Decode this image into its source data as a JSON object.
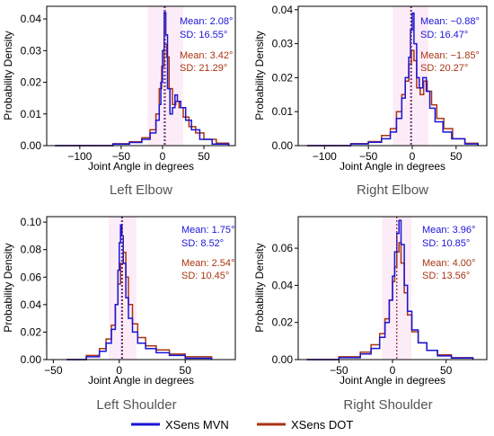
{
  "colors": {
    "mvn": "#1a14d6",
    "dot": "#a83412",
    "shade": "#f6c8e8"
  },
  "legend": [
    {
      "name": "XSens MVN",
      "color": "#1a14d6"
    },
    {
      "name": "XSens DOT",
      "color": "#a83412"
    }
  ],
  "chart_data": [
    {
      "type": "histogram-step",
      "caption": "Left Elbow",
      "xlabel": "Joint Angle in degrees",
      "ylabel": "Probability Density",
      "xlim": [
        -140,
        88
      ],
      "ylim": [
        0,
        0.044
      ],
      "xticks": [
        -100,
        -50,
        0,
        50
      ],
      "xtick_labels": [
        "−100",
        "−50",
        "0",
        "50"
      ],
      "yticks": [
        0.0,
        0.01,
        0.02,
        0.03,
        0.04
      ],
      "ytick_labels": [
        "0.00",
        "0.01",
        "0.02",
        "0.03",
        "0.04"
      ],
      "series": [
        {
          "name": "XSens MVN",
          "mean": 2.08,
          "sd": 16.55,
          "mean_label": "Mean: 2.08°",
          "sd_label": "SD: 16.55°",
          "points": [
            [
              -130,
              0
            ],
            [
              -60,
              0.0005
            ],
            [
              -40,
              0.001
            ],
            [
              -25,
              0.002
            ],
            [
              -15,
              0.004
            ],
            [
              -8,
              0.008
            ],
            [
              -4,
              0.013
            ],
            [
              -2,
              0.02
            ],
            [
              0,
              0.03
            ],
            [
              2,
              0.042
            ],
            [
              4,
              0.035
            ],
            [
              6,
              0.018
            ],
            [
              9,
              0.01
            ],
            [
              12,
              0.012
            ],
            [
              15,
              0.016
            ],
            [
              18,
              0.014
            ],
            [
              22,
              0.012
            ],
            [
              28,
              0.008
            ],
            [
              35,
              0.005
            ],
            [
              45,
              0.002
            ],
            [
              60,
              0.0005
            ],
            [
              80,
              0
            ]
          ]
        },
        {
          "name": "XSens DOT",
          "mean": 3.42,
          "sd": 21.29,
          "mean_label": "Mean: 3.42°",
          "sd_label": "SD: 21.29°",
          "points": [
            [
              -130,
              0
            ],
            [
              -60,
              0.0006
            ],
            [
              -40,
              0.0012
            ],
            [
              -25,
              0.0025
            ],
            [
              -15,
              0.005
            ],
            [
              -8,
              0.01
            ],
            [
              -4,
              0.018
            ],
            [
              -1,
              0.025
            ],
            [
              2,
              0.032
            ],
            [
              5,
              0.028
            ],
            [
              8,
              0.018
            ],
            [
              12,
              0.013
            ],
            [
              16,
              0.014
            ],
            [
              20,
              0.012
            ],
            [
              25,
              0.009
            ],
            [
              32,
              0.006
            ],
            [
              40,
              0.004
            ],
            [
              50,
              0.002
            ],
            [
              65,
              0.0008
            ],
            [
              80,
              0
            ]
          ]
        }
      ]
    },
    {
      "type": "histogram-step",
      "caption": "Right Elbow",
      "xlabel": "Joint Angle in degrees",
      "ylabel": "Probability Density",
      "xlim": [
        -130,
        85
      ],
      "ylim": [
        0,
        0.041
      ],
      "xticks": [
        -100,
        -50,
        0,
        50
      ],
      "xtick_labels": [
        "−100",
        "−50",
        "0",
        "50"
      ],
      "yticks": [
        0.0,
        0.01,
        0.02,
        0.03,
        0.04
      ],
      "ytick_labels": [
        "0.00",
        "0.01",
        "0.02",
        "0.03",
        "0.04"
      ],
      "series": [
        {
          "name": "XSens MVN",
          "mean": -0.88,
          "sd": 16.47,
          "mean_label": "Mean: −0.88°",
          "sd_label": "SD: 16.47°",
          "points": [
            [
              -120,
              0
            ],
            [
              -70,
              0.0005
            ],
            [
              -50,
              0.001
            ],
            [
              -35,
              0.002
            ],
            [
              -25,
              0.004
            ],
            [
              -18,
              0.008
            ],
            [
              -12,
              0.014
            ],
            [
              -8,
              0.02
            ],
            [
              -4,
              0.026
            ],
            [
              -2,
              0.034
            ],
            [
              0,
              0.039
            ],
            [
              2,
              0.03
            ],
            [
              5,
              0.02
            ],
            [
              8,
              0.017
            ],
            [
              12,
              0.02
            ],
            [
              16,
              0.016
            ],
            [
              20,
              0.011
            ],
            [
              26,
              0.007
            ],
            [
              35,
              0.004
            ],
            [
              45,
              0.002
            ],
            [
              60,
              0.0005
            ],
            [
              75,
              0
            ]
          ]
        },
        {
          "name": "XSens DOT",
          "mean": -1.85,
          "sd": 20.27,
          "mean_label": "Mean: −1.85°",
          "sd_label": "SD: 20.27°",
          "points": [
            [
              -120,
              0
            ],
            [
              -70,
              0.0006
            ],
            [
              -50,
              0.0012
            ],
            [
              -35,
              0.003
            ],
            [
              -25,
              0.005
            ],
            [
              -18,
              0.01
            ],
            [
              -12,
              0.015
            ],
            [
              -8,
              0.019
            ],
            [
              -4,
              0.024
            ],
            [
              -1,
              0.028
            ],
            [
              2,
              0.025
            ],
            [
              5,
              0.017
            ],
            [
              9,
              0.015
            ],
            [
              13,
              0.019
            ],
            [
              17,
              0.016
            ],
            [
              22,
              0.012
            ],
            [
              28,
              0.008
            ],
            [
              36,
              0.005
            ],
            [
              46,
              0.002
            ],
            [
              60,
              0.0007
            ],
            [
              75,
              0
            ]
          ]
        }
      ]
    },
    {
      "type": "histogram-step",
      "caption": "Left Shoulder",
      "xlabel": "Joint Angle in degrees",
      "ylabel": "Probability Density",
      "xlim": [
        -55,
        88
      ],
      "ylim": [
        0,
        0.104
      ],
      "xticks": [
        -50,
        0,
        50
      ],
      "xtick_labels": [
        "−50",
        "0",
        "50"
      ],
      "yticks": [
        0.0,
        0.02,
        0.04,
        0.06,
        0.08,
        0.1
      ],
      "ytick_labels": [
        "0.00",
        "0.02",
        "0.04",
        "0.06",
        "0.08",
        "0.10"
      ],
      "series": [
        {
          "name": "XSens MVN",
          "mean": 1.75,
          "sd": 8.52,
          "mean_label": "Mean: 1.75°",
          "sd_label": "SD: 8.52°",
          "points": [
            [
              -40,
              0
            ],
            [
              -25,
              0.002
            ],
            [
              -15,
              0.006
            ],
            [
              -10,
              0.012
            ],
            [
              -6,
              0.022
            ],
            [
              -3,
              0.04
            ],
            [
              -1,
              0.065
            ],
            [
              0,
              0.085
            ],
            [
              1,
              0.098
            ],
            [
              2,
              0.09
            ],
            [
              3,
              0.07
            ],
            [
              5,
              0.045
            ],
            [
              7,
              0.03
            ],
            [
              10,
              0.02
            ],
            [
              14,
              0.012
            ],
            [
              20,
              0.008
            ],
            [
              28,
              0.005
            ],
            [
              38,
              0.003
            ],
            [
              50,
              0.001
            ],
            [
              70,
              0
            ]
          ]
        },
        {
          "name": "XSens DOT",
          "mean": 2.54,
          "sd": 10.45,
          "mean_label": "Mean: 2.54°",
          "sd_label": "SD: 10.45°",
          "points": [
            [
              -40,
              0
            ],
            [
              -25,
              0.003
            ],
            [
              -15,
              0.008
            ],
            [
              -10,
              0.015
            ],
            [
              -6,
              0.025
            ],
            [
              -3,
              0.04
            ],
            [
              -1,
              0.055
            ],
            [
              1,
              0.07
            ],
            [
              3,
              0.078
            ],
            [
              5,
              0.06
            ],
            [
              7,
              0.04
            ],
            [
              10,
              0.026
            ],
            [
              14,
              0.016
            ],
            [
              20,
              0.01
            ],
            [
              28,
              0.007
            ],
            [
              38,
              0.004
            ],
            [
              50,
              0.002
            ],
            [
              70,
              0
            ]
          ]
        }
      ]
    },
    {
      "type": "histogram-step",
      "caption": "Right Shoulder",
      "xlabel": "Joint Angle in degrees",
      "ylabel": "Probability Density",
      "xlim": [
        -88,
        88
      ],
      "ylim": [
        0,
        0.077
      ],
      "xticks": [
        -50,
        0,
        50
      ],
      "xtick_labels": [
        "−50",
        "0",
        "50"
      ],
      "yticks": [
        0.0,
        0.02,
        0.04,
        0.06
      ],
      "ytick_labels": [
        "0.00",
        "0.02",
        "0.04",
        "0.06"
      ],
      "series": [
        {
          "name": "XSens MVN",
          "mean": 3.96,
          "sd": 10.85,
          "mean_label": "Mean: 3.96°",
          "sd_label": "SD: 10.85°",
          "points": [
            [
              -80,
              0
            ],
            [
              -50,
              0.001
            ],
            [
              -30,
              0.003
            ],
            [
              -20,
              0.006
            ],
            [
              -12,
              0.012
            ],
            [
              -7,
              0.02
            ],
            [
              -3,
              0.032
            ],
            [
              0,
              0.045
            ],
            [
              2,
              0.058
            ],
            [
              4,
              0.068
            ],
            [
              6,
              0.075
            ],
            [
              8,
              0.062
            ],
            [
              11,
              0.04
            ],
            [
              14,
              0.026
            ],
            [
              18,
              0.016
            ],
            [
              24,
              0.009
            ],
            [
              32,
              0.005
            ],
            [
              42,
              0.002
            ],
            [
              55,
              0.0008
            ],
            [
              75,
              0
            ]
          ]
        },
        {
          "name": "XSens DOT",
          "mean": 4.0,
          "sd": 13.56,
          "mean_label": "Mean: 4.00°",
          "sd_label": "SD: 13.56°",
          "points": [
            [
              -80,
              0
            ],
            [
              -50,
              0.0015
            ],
            [
              -30,
              0.004
            ],
            [
              -20,
              0.008
            ],
            [
              -12,
              0.014
            ],
            [
              -7,
              0.022
            ],
            [
              -3,
              0.032
            ],
            [
              0,
              0.042
            ],
            [
              2,
              0.05
            ],
            [
              4,
              0.058
            ],
            [
              6,
              0.063
            ],
            [
              8,
              0.052
            ],
            [
              11,
              0.036
            ],
            [
              14,
              0.024
            ],
            [
              18,
              0.015
            ],
            [
              24,
              0.009
            ],
            [
              32,
              0.005
            ],
            [
              42,
              0.0025
            ],
            [
              55,
              0.001
            ],
            [
              75,
              0
            ]
          ]
        }
      ]
    }
  ]
}
